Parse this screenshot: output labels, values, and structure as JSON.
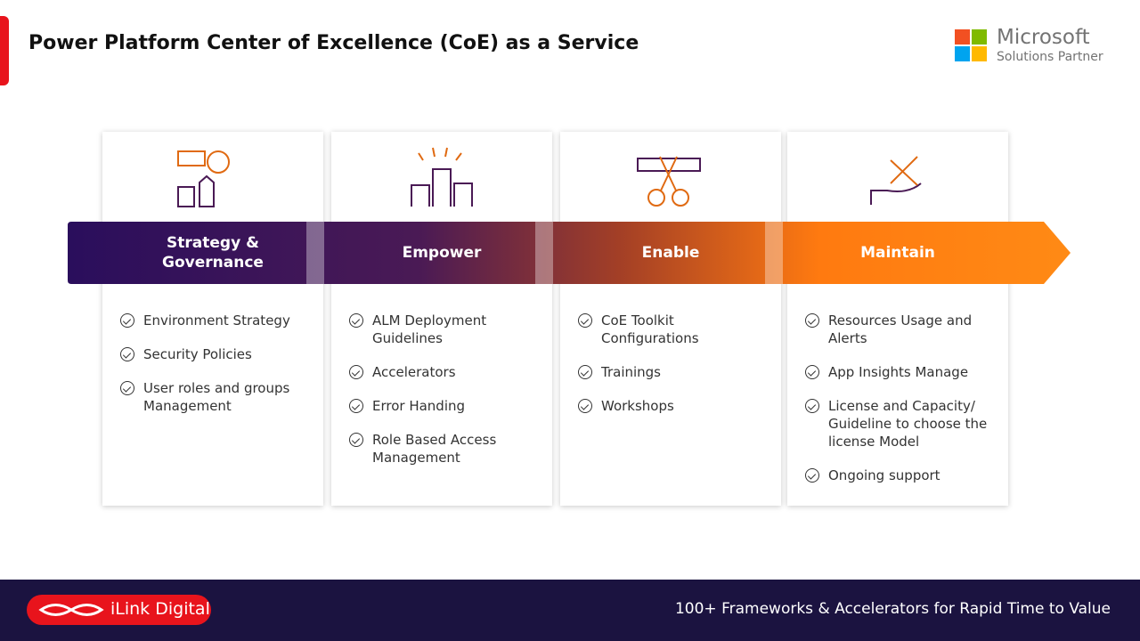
{
  "header": {
    "title": "Power Platform Center of Excellence (CoE) as a Service",
    "partner": {
      "name": "Microsoft",
      "subtitle": "Solutions Partner"
    }
  },
  "columns": [
    {
      "title": "Strategy & Governance",
      "items": [
        "Environment Strategy",
        "Security Policies",
        "User roles and groups Management"
      ]
    },
    {
      "title": "Empower",
      "items": [
        "ALM Deployment Guidelines",
        "Accelerators",
        "Error Handing",
        "Role Based Access Management"
      ]
    },
    {
      "title": "Enable",
      "items": [
        "CoE Toolkit Configurations",
        "Trainings",
        "Workshops"
      ]
    },
    {
      "title": "Maintain",
      "items": [
        "Resources Usage and Alerts",
        "App Insights Manage",
        "License and Capacity/ Guideline to choose the license Model",
        "Ongoing support"
      ]
    }
  ],
  "footer": {
    "brand": "iLink Digital",
    "tagline": "100+ Frameworks & Accelerators for Rapid Time to Value"
  }
}
